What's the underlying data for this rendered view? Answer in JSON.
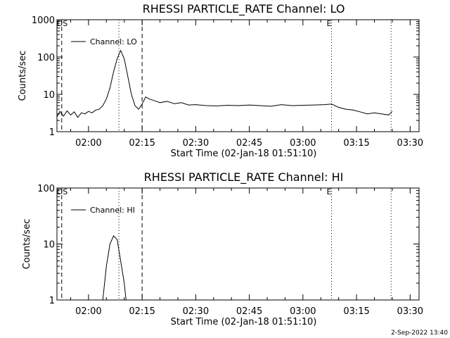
{
  "footer": "2-Sep-2022 13:40",
  "chart_data": [
    {
      "type": "line",
      "title": "RHESSI PARTICLE_RATE Channel: LO",
      "xlabel": "Start Time (02-Jan-18 01:51:10)",
      "ylabel": "Counts/sec",
      "yscale": "log",
      "ylim": [
        1,
        1000
      ],
      "xlim": [
        "01:51:10",
        "03:32:30"
      ],
      "x_ticks": [
        "02:00",
        "02:15",
        "02:30",
        "02:45",
        "03:00",
        "03:15",
        "03:30"
      ],
      "y_ticks": [
        "1",
        "10",
        "100",
        "1000"
      ],
      "legend": "top-left",
      "markers": [
        {
          "label": "DS",
          "time": "01:52:30",
          "style": "dashed"
        },
        {
          "label": "",
          "time": "02:08:30",
          "style": "dotted"
        },
        {
          "label": "",
          "time": "02:15:00",
          "style": "dashed"
        },
        {
          "label": "E",
          "time": "03:08:00",
          "style": "dotted"
        },
        {
          "label": "",
          "time": "03:24:40",
          "style": "dotted"
        }
      ],
      "series": [
        {
          "name": "Channel: LO",
          "x": [
            "01:51:10",
            "01:52:00",
            "01:53:00",
            "01:54:00",
            "01:55:00",
            "01:56:00",
            "01:57:00",
            "01:58:00",
            "01:59:00",
            "02:00:00",
            "02:01:00",
            "02:02:00",
            "02:03:00",
            "02:04:00",
            "02:05:00",
            "02:06:00",
            "02:07:00",
            "02:08:00",
            "02:09:00",
            "02:10:00",
            "02:11:00",
            "02:12:00",
            "02:13:00",
            "02:14:00",
            "02:15:00",
            "02:16:00",
            "02:17:00",
            "02:18:00",
            "02:20:00",
            "02:22:00",
            "02:24:00",
            "02:26:00",
            "02:28:00",
            "02:30:00",
            "02:33:00",
            "02:36:00",
            "02:39:00",
            "02:42:00",
            "02:45:00",
            "02:48:00",
            "02:51:00",
            "02:54:00",
            "02:57:00",
            "03:00:00",
            "03:03:00",
            "03:06:00",
            "03:08:00",
            "03:10:00",
            "03:12:00",
            "03:14:00",
            "03:16:00",
            "03:18:00",
            "03:20:00",
            "03:22:00",
            "03:24:00",
            "03:25:00"
          ],
          "y": [
            2.5,
            3.5,
            2.6,
            3.6,
            2.8,
            3.4,
            2.4,
            3.2,
            3.0,
            3.5,
            3.2,
            3.8,
            4.0,
            5.0,
            7.5,
            15,
            40,
            90,
            150,
            90,
            30,
            10,
            5.0,
            4.0,
            5.5,
            8.5,
            7.5,
            7.0,
            6.0,
            6.5,
            5.6,
            6.0,
            5.2,
            5.3,
            5.0,
            4.9,
            5.1,
            5.0,
            5.2,
            5.0,
            4.8,
            5.3,
            5.0,
            5.1,
            5.2,
            5.3,
            5.5,
            4.5,
            4.0,
            3.8,
            3.4,
            3.0,
            3.2,
            3.0,
            2.8,
            3.5
          ]
        }
      ]
    },
    {
      "type": "line",
      "title": "RHESSI PARTICLE_RATE Channel: HI",
      "xlabel": "Start Time (02-Jan-18 01:51:10)",
      "ylabel": "Counts/sec",
      "yscale": "log",
      "ylim": [
        1,
        100
      ],
      "xlim": [
        "01:51:10",
        "03:32:30"
      ],
      "x_ticks": [
        "02:00",
        "02:15",
        "02:30",
        "02:45",
        "03:00",
        "03:15",
        "03:30"
      ],
      "y_ticks": [
        "1",
        "10",
        "100"
      ],
      "legend": "top-left",
      "markers": [
        {
          "label": "DS",
          "time": "01:52:30",
          "style": "dashed"
        },
        {
          "label": "",
          "time": "02:08:30",
          "style": "dotted"
        },
        {
          "label": "",
          "time": "02:15:00",
          "style": "dashed"
        },
        {
          "label": "E",
          "time": "03:08:00",
          "style": "dotted"
        },
        {
          "label": "",
          "time": "03:24:40",
          "style": "dotted"
        }
      ],
      "series": [
        {
          "name": "Channel: HI",
          "x": [
            "02:04:00",
            "02:05:00",
            "02:06:00",
            "02:07:00",
            "02:08:00",
            "02:09:00",
            "02:10:00",
            "02:10:30"
          ],
          "y": [
            1.0,
            4.0,
            10,
            14,
            12,
            5.0,
            2.0,
            1.0
          ]
        }
      ]
    }
  ]
}
